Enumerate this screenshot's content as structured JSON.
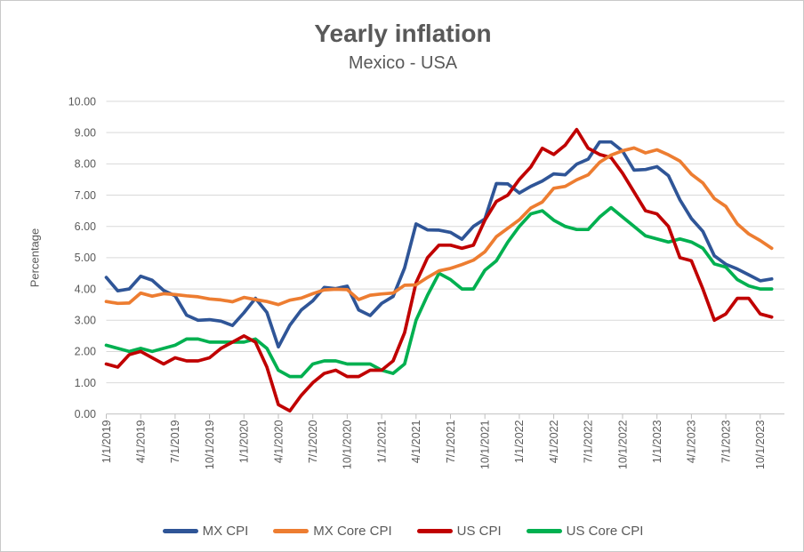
{
  "window": {
    "background": "#ffffff",
    "border_color": "#c9c9c9",
    "text_color": "#595959"
  },
  "chart_data": {
    "type": "line",
    "title": "Yearly inflation",
    "subtitle": "Mexico - USA",
    "ylabel": "Percentage",
    "xlabel": "",
    "ylim": [
      0,
      10
    ],
    "ytick_labels": [
      "0.00",
      "1.00",
      "2.00",
      "3.00",
      "4.00",
      "5.00",
      "6.00",
      "7.00",
      "8.00",
      "9.00",
      "10.00"
    ],
    "x_start": "1/1/2019",
    "x_interval": "monthly",
    "x_tick_every_months": 3,
    "x_tick_labels": [
      "1/1/2019",
      "4/1/2019",
      "7/1/2019",
      "10/1/2019",
      "1/1/2020",
      "4/1/2020",
      "7/1/2020",
      "10/1/2020",
      "1/1/2021",
      "4/1/2021",
      "7/1/2021",
      "10/1/2021",
      "1/1/2022",
      "4/1/2022",
      "7/1/2022",
      "10/1/2022",
      "1/1/2023",
      "4/1/2023",
      "7/1/2023",
      "10/1/2023"
    ],
    "grid": "horizontal",
    "gridline_color": "#d9d9d9",
    "axis_color": "#bfbfbf",
    "tick_label_color": "#595959",
    "legend_position": "bottom",
    "draw_order": [
      0,
      3,
      2,
      1
    ],
    "series": [
      {
        "name": "MX CPI",
        "color": "#2F5597",
        "values": [
          4.37,
          3.94,
          4.0,
          4.41,
          4.28,
          3.95,
          3.78,
          3.16,
          3.0,
          3.02,
          2.97,
          2.83,
          3.24,
          3.7,
          3.25,
          2.15,
          2.84,
          3.33,
          3.62,
          4.05,
          4.01,
          4.09,
          3.33,
          3.15,
          3.54,
          3.76,
          4.67,
          6.08,
          5.89,
          5.88,
          5.81,
          5.59,
          6.0,
          6.24,
          7.37,
          7.36,
          7.07,
          7.28,
          7.45,
          7.68,
          7.65,
          7.99,
          8.15,
          8.7,
          8.7,
          8.41,
          7.8,
          7.82,
          7.91,
          7.62,
          6.85,
          6.25,
          5.84,
          5.06,
          4.79,
          4.64,
          4.45,
          4.26,
          4.32
        ]
      },
      {
        "name": "MX Core CPI",
        "color": "#ED7D31",
        "values": [
          3.6,
          3.54,
          3.55,
          3.87,
          3.77,
          3.85,
          3.82,
          3.78,
          3.75,
          3.68,
          3.65,
          3.59,
          3.73,
          3.66,
          3.6,
          3.5,
          3.64,
          3.71,
          3.85,
          3.97,
          3.99,
          3.98,
          3.66,
          3.8,
          3.84,
          3.87,
          4.12,
          4.13,
          4.37,
          4.58,
          4.66,
          4.78,
          4.92,
          5.19,
          5.67,
          5.94,
          6.21,
          6.59,
          6.78,
          7.22,
          7.28,
          7.49,
          7.65,
          8.05,
          8.28,
          8.42,
          8.51,
          8.35,
          8.45,
          8.29,
          8.09,
          7.67,
          7.39,
          6.89,
          6.64,
          6.08,
          5.76,
          5.55,
          5.3
        ]
      },
      {
        "name": "US CPI",
        "color": "#C00000",
        "values": [
          1.6,
          1.5,
          1.9,
          2.0,
          1.8,
          1.6,
          1.8,
          1.7,
          1.7,
          1.8,
          2.1,
          2.3,
          2.5,
          2.3,
          1.5,
          0.3,
          0.1,
          0.6,
          1.0,
          1.3,
          1.4,
          1.2,
          1.2,
          1.4,
          1.4,
          1.7,
          2.6,
          4.2,
          5.0,
          5.4,
          5.4,
          5.3,
          5.4,
          6.2,
          6.8,
          7.0,
          7.5,
          7.9,
          8.5,
          8.3,
          8.6,
          9.1,
          8.5,
          8.3,
          8.2,
          7.7,
          7.1,
          6.5,
          6.4,
          6.0,
          5.0,
          4.9,
          4.0,
          3.0,
          3.2,
          3.7,
          3.7,
          3.2,
          3.1
        ]
      },
      {
        "name": "US Core CPI",
        "color": "#00B050",
        "values": [
          2.2,
          2.1,
          2.0,
          2.1,
          2.0,
          2.1,
          2.2,
          2.4,
          2.4,
          2.3,
          2.3,
          2.3,
          2.3,
          2.4,
          2.1,
          1.4,
          1.2,
          1.2,
          1.6,
          1.7,
          1.7,
          1.6,
          1.6,
          1.6,
          1.4,
          1.3,
          1.6,
          3.0,
          3.8,
          4.5,
          4.3,
          4.0,
          4.0,
          4.6,
          4.9,
          5.5,
          6.0,
          6.4,
          6.5,
          6.2,
          6.0,
          5.9,
          5.9,
          6.3,
          6.6,
          6.3,
          6.0,
          5.7,
          5.6,
          5.5,
          5.6,
          5.5,
          5.3,
          4.8,
          4.7,
          4.3,
          4.1,
          4.0,
          4.0
        ]
      }
    ]
  }
}
